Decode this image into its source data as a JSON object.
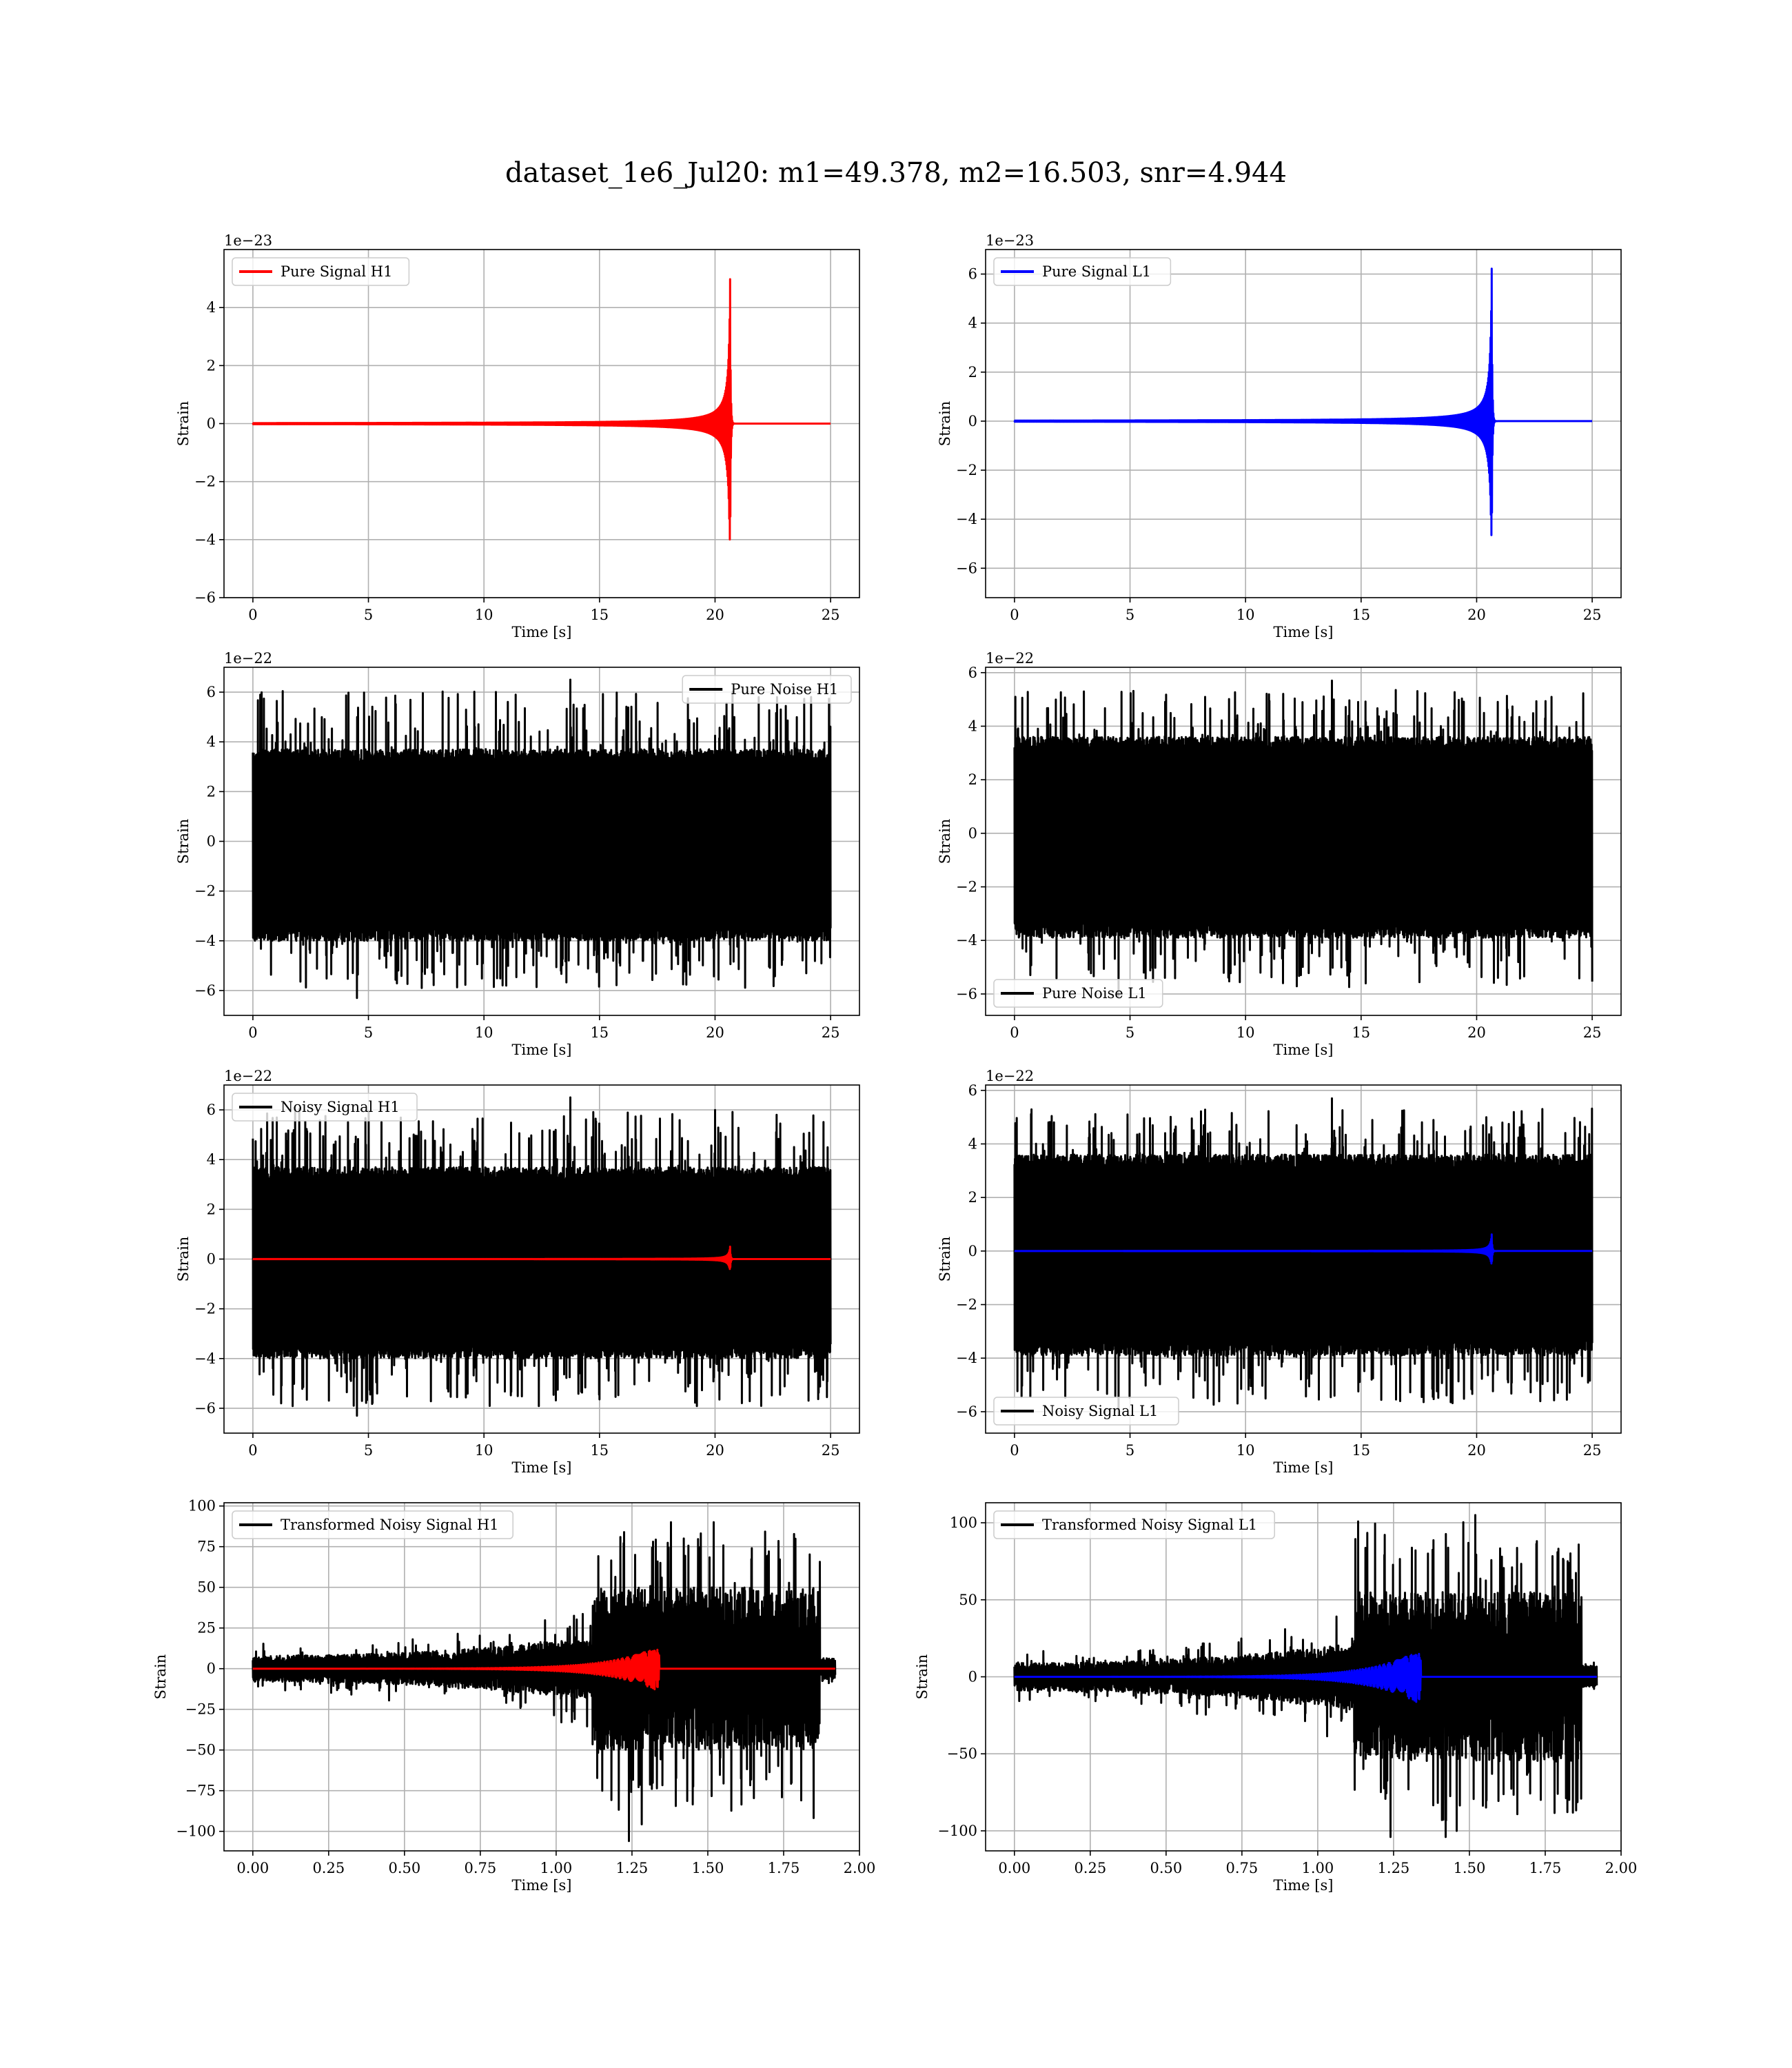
{
  "figure": {
    "title": "dataset_1e6_Jul20: m1=49.378, m2=16.503, snr=4.944"
  },
  "colors": {
    "h1_signal": "#ff0000",
    "l1_signal": "#0000ff",
    "noise": "#000000",
    "grid": "#b0b0b0"
  },
  "chart_data": [
    {
      "id": "pure-signal-h1",
      "type": "line",
      "xlabel": "Time [s]",
      "ylabel": "Strain",
      "offset_text": "1e−23",
      "xlim": [
        -1.25,
        26.25
      ],
      "ylim": [
        -6,
        6
      ],
      "xticks": [
        0,
        5,
        10,
        15,
        20,
        25
      ],
      "yticks": [
        -6,
        -4,
        -2,
        0,
        2,
        4
      ],
      "ytick_labels": [
        "−6",
        "−4",
        "−2",
        "0",
        "2",
        "4"
      ],
      "grid": true,
      "legend": {
        "placement": "upper-left",
        "entries": [
          {
            "name": "Pure Signal H1",
            "color": "#ff0000"
          }
        ]
      },
      "series": [
        {
          "name": "Pure Signal H1",
          "kind": "chirp",
          "color": "#ff0000",
          "x_range": [
            0,
            25
          ],
          "merger_time": 20.65,
          "peak_amplitude": 5.2,
          "peak_min": -5.5
        }
      ]
    },
    {
      "id": "pure-signal-l1",
      "type": "line",
      "xlabel": "Time [s]",
      "ylabel": "Strain",
      "offset_text": "1e−23",
      "xlim": [
        -1.25,
        26.25
      ],
      "ylim": [
        -7.2,
        7.0
      ],
      "xticks": [
        0,
        5,
        10,
        15,
        20,
        25
      ],
      "yticks": [
        -6,
        -4,
        -2,
        0,
        2,
        4,
        6
      ],
      "ytick_labels": [
        "−6",
        "−4",
        "−2",
        "0",
        "2",
        "4",
        "6"
      ],
      "grid": true,
      "legend": {
        "placement": "upper-left",
        "entries": [
          {
            "name": "Pure Signal L1",
            "color": "#0000ff"
          }
        ]
      },
      "series": [
        {
          "name": "Pure Signal L1",
          "kind": "chirp",
          "color": "#0000ff",
          "x_range": [
            0,
            25
          ],
          "merger_time": 20.65,
          "peak_amplitude": 6.5,
          "peak_min": -6.4
        }
      ]
    },
    {
      "id": "pure-noise-h1",
      "type": "line",
      "xlabel": "Time [s]",
      "ylabel": "Strain",
      "offset_text": "1e−22",
      "xlim": [
        -1.25,
        26.25
      ],
      "ylim": [
        -7,
        7
      ],
      "xticks": [
        0,
        5,
        10,
        15,
        20,
        25
      ],
      "yticks": [
        -6,
        -4,
        -2,
        0,
        2,
        4,
        6
      ],
      "ytick_labels": [
        "−6",
        "−4",
        "−2",
        "0",
        "2",
        "4",
        "6"
      ],
      "grid": true,
      "legend": {
        "placement": "upper-right",
        "entries": [
          {
            "name": "Pure Noise H1",
            "color": "#000000"
          }
        ]
      },
      "series": [
        {
          "name": "Pure Noise H1",
          "kind": "noise",
          "color": "#000000",
          "x_range": [
            0,
            25
          ],
          "band": [
            -4,
            3.7
          ],
          "max": 6.5,
          "min": -6.3
        }
      ]
    },
    {
      "id": "pure-noise-l1",
      "type": "line",
      "xlabel": "Time [s]",
      "ylabel": "Strain",
      "offset_text": "1e−22",
      "xlim": [
        -1.25,
        26.25
      ],
      "ylim": [
        -6.8,
        6.2
      ],
      "xticks": [
        0,
        5,
        10,
        15,
        20,
        25
      ],
      "yticks": [
        -6,
        -4,
        -2,
        0,
        2,
        4,
        6
      ],
      "ytick_labels": [
        "−6",
        "−4",
        "−2",
        "0",
        "2",
        "4",
        "6"
      ],
      "grid": true,
      "legend": {
        "placement": "lower-left",
        "entries": [
          {
            "name": "Pure Noise L1",
            "color": "#000000"
          }
        ]
      },
      "series": [
        {
          "name": "Pure Noise L1",
          "kind": "noise",
          "color": "#000000",
          "x_range": [
            0,
            25
          ],
          "band": [
            -3.9,
            3.6
          ],
          "max": 5.7,
          "min": -6.1
        }
      ]
    },
    {
      "id": "noisy-signal-h1",
      "type": "line",
      "xlabel": "Time [s]",
      "ylabel": "Strain",
      "offset_text": "1e−22",
      "xlim": [
        -1.25,
        26.25
      ],
      "ylim": [
        -7,
        7
      ],
      "xticks": [
        0,
        5,
        10,
        15,
        20,
        25
      ],
      "yticks": [
        -6,
        -4,
        -2,
        0,
        2,
        4,
        6
      ],
      "ytick_labels": [
        "−6",
        "−4",
        "−2",
        "0",
        "2",
        "4",
        "6"
      ],
      "grid": true,
      "legend": {
        "placement": "upper-left",
        "entries": [
          {
            "name": "Noisy Signal H1",
            "color": "#000000"
          }
        ]
      },
      "series": [
        {
          "name": "Noisy Signal H1",
          "kind": "noise",
          "color": "#000000",
          "x_range": [
            0,
            25
          ],
          "band": [
            -4,
            3.7
          ],
          "max": 6.5,
          "min": -6.3
        },
        {
          "name": "Pure Signal H1",
          "kind": "chirp",
          "color": "#ff0000",
          "x_range": [
            0,
            25
          ],
          "merger_time": 20.65,
          "peak_amplitude": 0.52,
          "peak_min": -0.55
        }
      ]
    },
    {
      "id": "noisy-signal-l1",
      "type": "line",
      "xlabel": "Time [s]",
      "ylabel": "Strain",
      "offset_text": "1e−22",
      "xlim": [
        -1.25,
        26.25
      ],
      "ylim": [
        -6.8,
        6.2
      ],
      "xticks": [
        0,
        5,
        10,
        15,
        20,
        25
      ],
      "yticks": [
        -6,
        -4,
        -2,
        0,
        2,
        4,
        6
      ],
      "ytick_labels": [
        "−6",
        "−4",
        "−2",
        "0",
        "2",
        "4",
        "6"
      ],
      "grid": true,
      "legend": {
        "placement": "lower-left",
        "entries": [
          {
            "name": "Noisy Signal L1",
            "color": "#000000"
          }
        ]
      },
      "series": [
        {
          "name": "Noisy Signal L1",
          "kind": "noise",
          "color": "#000000",
          "x_range": [
            0,
            25
          ],
          "band": [
            -3.9,
            3.6
          ],
          "max": 5.7,
          "min": -6.1
        },
        {
          "name": "Pure Signal L1",
          "kind": "chirp",
          "color": "#0000ff",
          "x_range": [
            0,
            25
          ],
          "merger_time": 20.65,
          "peak_amplitude": 0.65,
          "peak_min": -0.64
        }
      ]
    },
    {
      "id": "transformed-noisy-h1",
      "type": "line",
      "xlabel": "Time [s]",
      "ylabel": "Strain",
      "offset_text": "",
      "xlim": [
        -0.095,
        2.0
      ],
      "ylim": [
        -112,
        102
      ],
      "xticks": [
        0,
        0.25,
        0.5,
        0.75,
        1.0,
        1.25,
        1.5,
        1.75,
        2.0
      ],
      "xtick_labels": [
        "0.00",
        "0.25",
        "0.50",
        "0.75",
        "1.00",
        "1.25",
        "1.50",
        "1.75",
        "2.00"
      ],
      "yticks": [
        -100,
        -75,
        -50,
        -25,
        0,
        25,
        50,
        75,
        100
      ],
      "ytick_labels": [
        "−100",
        "−75",
        "−50",
        "−25",
        "0",
        "25",
        "50",
        "75",
        "100"
      ],
      "grid": true,
      "legend": {
        "placement": "upper-left",
        "entries": [
          {
            "name": "Transformed Noisy Signal H1",
            "color": "#000000"
          }
        ]
      },
      "series": [
        {
          "name": "Transformed Noisy Signal H1",
          "kind": "whitened_noise",
          "color": "#000000",
          "x_range": [
            0,
            1.92
          ],
          "jump_time": 1.12,
          "drop_time": 1.87,
          "low_band": 8,
          "high_band": 50,
          "max": 90,
          "min": -106
        },
        {
          "name": "Pure Signal H1",
          "kind": "whitened_chirp",
          "color": "#ff0000",
          "x_range": [
            0,
            1.92
          ],
          "merger_time": 1.34,
          "peak_amplitude": 14
        }
      ]
    },
    {
      "id": "transformed-noisy-l1",
      "type": "line",
      "xlabel": "Time [s]",
      "ylabel": "Strain",
      "offset_text": "",
      "xlim": [
        -0.095,
        2.0
      ],
      "ylim": [
        -113,
        113
      ],
      "xticks": [
        0,
        0.25,
        0.5,
        0.75,
        1.0,
        1.25,
        1.5,
        1.75,
        2.0
      ],
      "xtick_labels": [
        "0.00",
        "0.25",
        "0.50",
        "0.75",
        "1.00",
        "1.25",
        "1.50",
        "1.75",
        "2.00"
      ],
      "yticks": [
        -100,
        -50,
        0,
        50,
        100
      ],
      "ytick_labels": [
        "−100",
        "−50",
        "0",
        "50",
        "100"
      ],
      "grid": true,
      "legend": {
        "placement": "upper-left",
        "entries": [
          {
            "name": "Transformed Noisy Signal L1",
            "color": "#000000"
          }
        ]
      },
      "series": [
        {
          "name": "Transformed Noisy Signal L1",
          "kind": "whitened_noise",
          "color": "#000000",
          "x_range": [
            0,
            1.92
          ],
          "jump_time": 1.12,
          "drop_time": 1.87,
          "low_band": 9,
          "high_band": 55,
          "max": 105,
          "min": -104
        },
        {
          "name": "Pure Signal L1",
          "kind": "whitened_chirp",
          "color": "#0000ff",
          "x_range": [
            0,
            1.92
          ],
          "merger_time": 1.34,
          "peak_amplitude": 18
        }
      ]
    }
  ]
}
